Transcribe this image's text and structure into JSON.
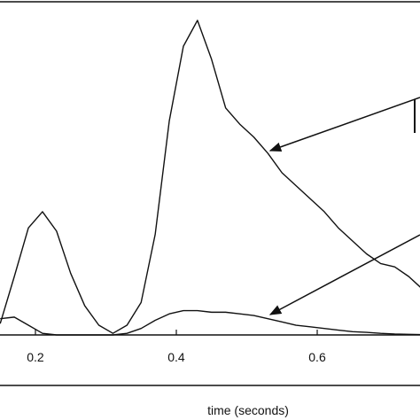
{
  "chart_data": {
    "type": "line",
    "x_label": "time (seconds)",
    "x": [
      0.15,
      0.17,
      0.19,
      0.21,
      0.23,
      0.25,
      0.27,
      0.29,
      0.31,
      0.33,
      0.35,
      0.37,
      0.39,
      0.41,
      0.43,
      0.45,
      0.47,
      0.49,
      0.51,
      0.53,
      0.55,
      0.57,
      0.59,
      0.61,
      0.63,
      0.65,
      0.67,
      0.69,
      0.71,
      0.73,
      0.75
    ],
    "series": [
      {
        "color": "#111111",
        "values": [
          3.5,
          18,
          33,
          38,
          32,
          19,
          9,
          3,
          0.5,
          3,
          10,
          31,
          66,
          89,
          97,
          85,
          70,
          65,
          61,
          56,
          50,
          46,
          42,
          38,
          33,
          29,
          25,
          22,
          21,
          18,
          14
        ]
      },
      {
        "color": "#111111",
        "values": [
          5,
          5.5,
          3,
          0.5,
          0,
          0,
          0,
          0,
          0,
          0.5,
          2,
          4.5,
          6.5,
          7.5,
          7.5,
          7,
          7,
          6.5,
          6,
          5,
          4,
          3,
          2.5,
          2,
          1.5,
          1,
          0.8,
          0.5,
          0.3,
          0.2,
          0.1
        ]
      }
    ],
    "xlim": [
      0.1497,
      0.7459
    ],
    "ylim": [
      0,
      100
    ],
    "xticks": [
      0.2,
      0.4,
      0.6
    ]
  }
}
